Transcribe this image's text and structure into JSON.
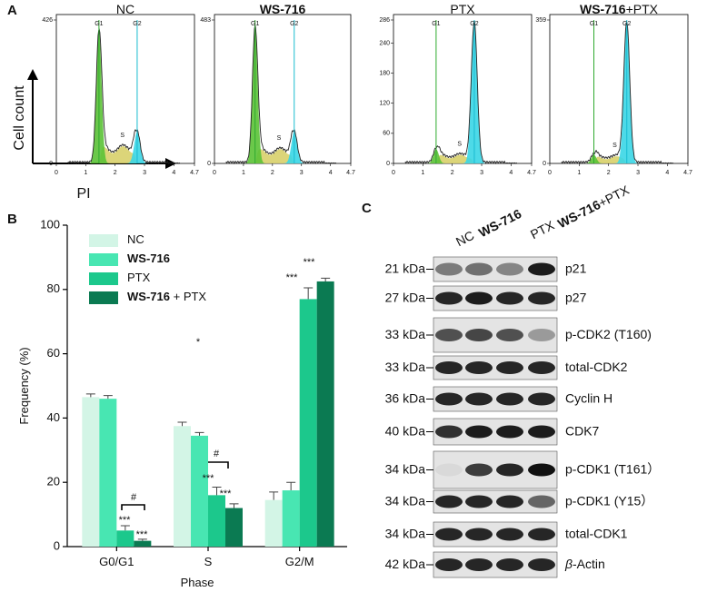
{
  "panel_a": {
    "label": "A",
    "y_axis_label": "Cell count",
    "x_axis_label": "PI",
    "xlim": [
      0,
      4.7
    ],
    "xticks": [
      0,
      1,
      2,
      3,
      4,
      4.7
    ],
    "plots": [
      {
        "title": "NC",
        "ylim": [
          0,
          426
        ],
        "yticks": [
          0,
          426
        ],
        "gates": [
          "G1",
          "G2"
        ],
        "s_label": "S"
      },
      {
        "title": "WS-716",
        "ylim": [
          0,
          483
        ],
        "yticks": [
          0,
          483
        ],
        "gates": [
          "G1",
          "G2"
        ],
        "s_label": "S"
      },
      {
        "title": "PTX",
        "ylim": [
          0,
          286
        ],
        "yticks": [
          0,
          60,
          120,
          180,
          240,
          286
        ],
        "gates": [
          "G1",
          "G2"
        ],
        "s_label": "S"
      },
      {
        "title": "WS-716+PTX",
        "ylim": [
          0,
          359
        ],
        "yticks": [
          0,
          359
        ],
        "gates": [
          "G1",
          "G2"
        ],
        "s_label": "S"
      }
    ]
  },
  "chart_data": {
    "type": "bar",
    "label": "B",
    "x_axis_label": "Phase",
    "y_axis_label": "Frequency (%)",
    "categories": [
      "G0/G1",
      "S",
      "G2/M"
    ],
    "series": [
      {
        "name": "NC",
        "color": "#d3f5e6",
        "values": [
          46.5,
          37.5,
          14.5
        ],
        "errors": [
          1,
          1.2,
          2.5
        ]
      },
      {
        "name": "WS-716",
        "color": "#48e6b2",
        "values": [
          46,
          34.5,
          17.5
        ],
        "errors": [
          1,
          1,
          2.5
        ]
      },
      {
        "name": "PTX",
        "color": "#1cc88c",
        "values": [
          5,
          16,
          77
        ],
        "errors": [
          1.5,
          2.5,
          3.5
        ]
      },
      {
        "name": "WS-716 + PTX",
        "color": "#0b7a52",
        "values": [
          1.8,
          12,
          82.5
        ],
        "errors": [
          0.5,
          1.3,
          1
        ]
      }
    ],
    "ylim": [
      0,
      100
    ],
    "yticks": [
      0,
      20,
      40,
      60,
      80,
      100
    ],
    "annotations": [
      "*",
      "***",
      "***",
      "***",
      "***",
      "***",
      "***",
      "#",
      "#"
    ]
  },
  "panel_c": {
    "label": "C",
    "lanes": [
      "NC",
      "WS-716",
      "PTX",
      "WS-716+PTX"
    ],
    "rows": [
      {
        "kda": "21 kDa",
        "protein": "p21"
      },
      {
        "kda": "27 kDa",
        "protein": "p27"
      },
      {
        "kda": "33 kDa",
        "protein": "p-CDK2 (T160)"
      },
      {
        "kda": "33 kDa",
        "protein": "total-CDK2"
      },
      {
        "kda": "36 kDa",
        "protein": "Cyclin H"
      },
      {
        "kda": "40 kDa",
        "protein": "CDK7"
      },
      {
        "kda": "34 kDa",
        "protein": "p-CDK1 (T161）"
      },
      {
        "kda": "34 kDa",
        "protein": "p-CDK1 (Y15）"
      },
      {
        "kda": "34 kDa",
        "protein": "total-CDK1"
      },
      {
        "kda": "42 kDa",
        "protein": "β-Actin"
      }
    ]
  }
}
